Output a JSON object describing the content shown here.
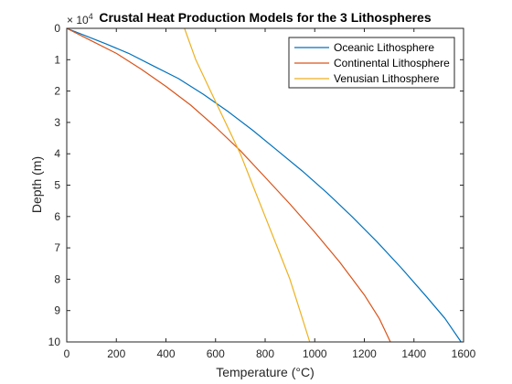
{
  "chart_data": {
    "type": "line",
    "title": "Crustal Heat Production Models for the 3 Lithospheres",
    "xlabel": "Temperature (°C)",
    "ylabel": "Depth (m)",
    "xlim": [
      0,
      1600
    ],
    "ylim": [
      0,
      10
    ],
    "y_reversed": true,
    "y_exponent_label": "× 10",
    "y_exponent": "4",
    "x_ticks": [
      0,
      200,
      400,
      600,
      800,
      1000,
      1200,
      1400,
      1600
    ],
    "y_ticks": [
      0,
      1,
      2,
      3,
      4,
      5,
      6,
      7,
      8,
      9,
      10
    ],
    "grid": false,
    "legend_position": "top-right",
    "series": [
      {
        "name": "Oceanic Lithosphere",
        "color": "#0072BD",
        "x": [
          0,
          80,
          160,
          250,
          350,
          450,
          550,
          650,
          750,
          850,
          950,
          1050,
          1150,
          1250,
          1350,
          1450,
          1525,
          1590
        ],
        "y": [
          0,
          0.25,
          0.5,
          0.8,
          1.2,
          1.6,
          2.1,
          2.65,
          3.25,
          3.9,
          4.55,
          5.25,
          6.0,
          6.8,
          7.65,
          8.55,
          9.25,
          10
        ]
      },
      {
        "name": "Continental Lithosphere",
        "color": "#D95319",
        "x": [
          0,
          100,
          200,
          300,
          400,
          500,
          600,
          700,
          800,
          900,
          1000,
          1100,
          1200,
          1260,
          1305
        ],
        "y": [
          0,
          0.4,
          0.8,
          1.3,
          1.85,
          2.45,
          3.15,
          3.9,
          4.75,
          5.6,
          6.5,
          7.45,
          8.5,
          9.25,
          10
        ]
      },
      {
        "name": "Venusian Lithosphere",
        "color": "#EDB120",
        "x": [
          475,
          520,
          580,
          640,
          700,
          750,
          800,
          850,
          900,
          940,
          980
        ],
        "y": [
          0,
          1,
          2,
          3,
          4,
          5,
          6,
          7,
          8,
          9,
          10
        ]
      }
    ]
  }
}
